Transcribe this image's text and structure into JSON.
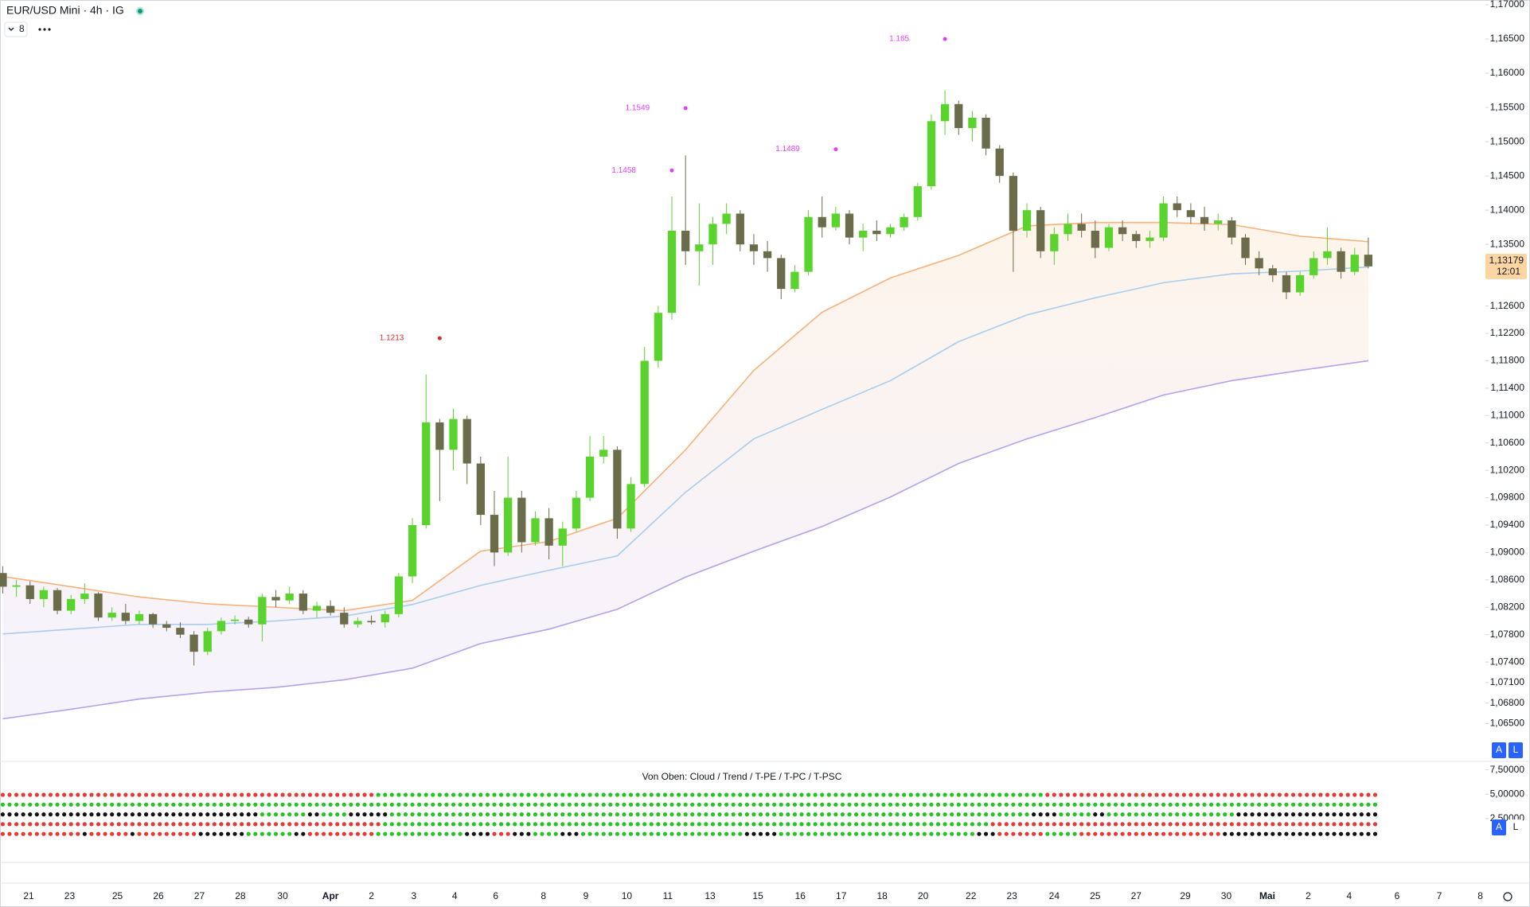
{
  "chart_data": [
    {
      "type": "candlestick",
      "title": "EUR/USD Mini · 4h · IG",
      "badge": "8",
      "up_color": "#5bd32e",
      "down_color": "#6b6c4a",
      "open": [
        1.087,
        1.085,
        1.0852,
        1.0832,
        1.0845,
        1.0815,
        1.0832,
        1.084,
        1.0805,
        1.0812,
        1.08,
        1.081,
        1.0795,
        1.079,
        1.078,
        1.0755,
        1.0785,
        1.08,
        1.0802,
        1.0795,
        1.0835,
        1.083,
        1.084,
        1.0815,
        1.0822,
        1.0812,
        1.0795,
        1.08,
        1.0798,
        1.081,
        1.0865,
        1.094,
        1.109,
        1.105,
        1.1095,
        1.103,
        1.0955,
        1.09,
        1.098,
        1.0915,
        1.095,
        1.091,
        1.0935,
        1.098,
        1.104,
        1.105,
        1.0935,
        1.1,
        1.118,
        1.125,
        1.137,
        1.134,
        1.135,
        1.138,
        1.1395,
        1.135,
        1.134,
        1.133,
        1.1285,
        1.131,
        1.139,
        1.1375,
        1.1395,
        1.136,
        1.137,
        1.1365,
        1.1375,
        1.139,
        1.1435,
        1.153,
        1.1555,
        1.152,
        1.1535,
        1.149,
        1.145,
        1.137,
        1.14,
        1.134,
        1.1365,
        1.138,
        1.137,
        1.1345,
        1.1375,
        1.1365,
        1.1355,
        1.136,
        1.141,
        1.14,
        1.139,
        1.138,
        1.1385,
        1.136,
        1.133,
        1.1315,
        1.1305,
        1.128,
        1.1305,
        1.133,
        1.134,
        1.131,
        1.1335
      ],
      "high": [
        1.088,
        1.086,
        1.0858,
        1.085,
        1.0848,
        1.0838,
        1.0855,
        1.0842,
        1.082,
        1.0825,
        1.0815,
        1.0812,
        1.08,
        1.0798,
        1.0785,
        1.079,
        1.0805,
        1.0808,
        1.0806,
        1.084,
        1.0845,
        1.085,
        1.0845,
        1.0828,
        1.083,
        1.082,
        1.0805,
        1.0808,
        1.0815,
        1.087,
        1.095,
        1.116,
        1.1095,
        1.111,
        1.11,
        1.104,
        1.099,
        1.104,
        1.099,
        1.096,
        1.0965,
        1.0945,
        1.099,
        1.107,
        1.107,
        1.1055,
        1.101,
        1.12,
        1.126,
        1.142,
        1.148,
        1.141,
        1.139,
        1.141,
        1.14,
        1.1365,
        1.1355,
        1.1335,
        1.132,
        1.14,
        1.142,
        1.1405,
        1.14,
        1.138,
        1.1385,
        1.138,
        1.1395,
        1.144,
        1.154,
        1.1575,
        1.156,
        1.1545,
        1.154,
        1.1495,
        1.1455,
        1.141,
        1.1405,
        1.1375,
        1.1395,
        1.1395,
        1.1385,
        1.138,
        1.1385,
        1.137,
        1.137,
        1.142,
        1.142,
        1.141,
        1.1405,
        1.1395,
        1.139,
        1.1365,
        1.134,
        1.132,
        1.131,
        1.131,
        1.134,
        1.1375,
        1.1345,
        1.1345,
        1.136
      ],
      "low": [
        1.084,
        1.0835,
        1.0825,
        1.082,
        1.081,
        1.081,
        1.0825,
        1.08,
        1.08,
        1.0795,
        1.0795,
        1.079,
        1.0785,
        1.0775,
        1.0735,
        1.075,
        1.078,
        1.0795,
        1.079,
        1.077,
        1.082,
        1.0825,
        1.081,
        1.0805,
        1.0808,
        1.079,
        1.079,
        1.0795,
        1.079,
        1.0805,
        1.0855,
        1.0935,
        1.0975,
        1.102,
        1.1,
        1.094,
        1.088,
        1.0895,
        1.09,
        1.091,
        1.089,
        1.088,
        1.093,
        1.0975,
        1.103,
        1.092,
        1.093,
        1.0995,
        1.117,
        1.124,
        1.132,
        1.129,
        1.132,
        1.1365,
        1.134,
        1.132,
        1.131,
        1.127,
        1.128,
        1.1305,
        1.136,
        1.137,
        1.135,
        1.134,
        1.1355,
        1.136,
        1.137,
        1.1385,
        1.143,
        1.151,
        1.151,
        1.15,
        1.148,
        1.144,
        1.131,
        1.136,
        1.133,
        1.132,
        1.1355,
        1.136,
        1.133,
        1.134,
        1.1355,
        1.1345,
        1.1345,
        1.1355,
        1.139,
        1.138,
        1.137,
        1.137,
        1.135,
        1.132,
        1.1305,
        1.1295,
        1.127,
        1.1275,
        1.13,
        1.132,
        1.13,
        1.1305,
        1.1315
      ],
      "close": [
        1.085,
        1.0852,
        1.0832,
        1.0845,
        1.0815,
        1.0832,
        1.084,
        1.0805,
        1.0812,
        1.08,
        1.081,
        1.0795,
        1.079,
        1.078,
        1.0755,
        1.0785,
        1.08,
        1.0802,
        1.0795,
        1.0835,
        1.083,
        1.084,
        1.0815,
        1.0822,
        1.0812,
        1.0795,
        1.08,
        1.0798,
        1.081,
        1.0865,
        1.094,
        1.109,
        1.105,
        1.1095,
        1.103,
        1.0955,
        1.09,
        1.098,
        1.0915,
        1.095,
        1.091,
        1.0935,
        1.098,
        1.104,
        1.105,
        1.0935,
        1.1,
        1.118,
        1.125,
        1.137,
        1.134,
        1.135,
        1.138,
        1.1395,
        1.135,
        1.134,
        1.133,
        1.1285,
        1.131,
        1.139,
        1.1375,
        1.1395,
        1.136,
        1.137,
        1.1365,
        1.1375,
        1.139,
        1.1435,
        1.153,
        1.1555,
        1.152,
        1.1535,
        1.149,
        1.145,
        1.137,
        1.14,
        1.134,
        1.1365,
        1.138,
        1.137,
        1.1345,
        1.1375,
        1.1365,
        1.1355,
        1.136,
        1.141,
        1.14,
        1.139,
        1.138,
        1.1385,
        1.136,
        1.133,
        1.1315,
        1.1305,
        1.128,
        1.1305,
        1.133,
        1.134,
        1.131,
        1.1335,
        1.13179
      ],
      "series": [
        {
          "color": "#f7b27a",
          "x": [
            0,
            5,
            10,
            15,
            20,
            25,
            30,
            35,
            40,
            45,
            50,
            55,
            60,
            65,
            70,
            75,
            80,
            85,
            90,
            95,
            100
          ],
          "values": [
            1.0865,
            1.085,
            1.0835,
            1.0825,
            1.082,
            1.0815,
            1.083,
            1.0902,
            1.0916,
            1.095,
            1.105,
            1.1166,
            1.1251,
            1.1301,
            1.1334,
            1.1377,
            1.1382,
            1.1382,
            1.1379,
            1.1362,
            1.1354
          ]
        },
        {
          "color": "#a9cdee",
          "x": [
            0,
            5,
            10,
            15,
            20,
            25,
            30,
            35,
            40,
            45,
            50,
            55,
            60,
            65,
            70,
            75,
            80,
            85,
            90,
            95,
            100
          ],
          "values": [
            1.0781,
            1.0788,
            1.0795,
            1.0795,
            1.08,
            1.0807,
            1.0824,
            1.0852,
            1.0874,
            1.0895,
            1.0988,
            1.1066,
            1.1109,
            1.1151,
            1.1208,
            1.1247,
            1.1272,
            1.1294,
            1.1307,
            1.1311,
            1.1317
          ]
        },
        {
          "color": "#b3a2ec",
          "x": [
            0,
            5,
            10,
            15,
            20,
            25,
            30,
            35,
            40,
            45,
            50,
            55,
            60,
            65,
            70,
            75,
            80,
            85,
            90,
            95,
            100
          ],
          "values": [
            1.0657,
            1.0671,
            1.0686,
            1.0696,
            1.0703,
            1.0714,
            1.0731,
            1.0767,
            1.0788,
            1.0817,
            1.0864,
            1.0902,
            1.0938,
            1.0981,
            1.103,
            1.1066,
            1.1097,
            1.113,
            1.1151,
            1.1166,
            1.118
          ]
        }
      ],
      "annotations": [
        {
          "label": "1.165",
          "value": 1.165,
          "x": 69,
          "color": "#e040fb"
        },
        {
          "label": "1.1549",
          "value": 1.1549,
          "x": 50,
          "color": "#e040fb"
        },
        {
          "label": "1.1458",
          "value": 1.1458,
          "x": 49,
          "color": "#e040fb"
        },
        {
          "label": "1.1489",
          "value": 1.1489,
          "x": 61,
          "color": "#e040fb"
        },
        {
          "label": "1.1213",
          "value": 1.1213,
          "x": 32,
          "color": "#d32f2f"
        }
      ],
      "last_price": {
        "value": 1.13179,
        "label": "1,13179",
        "countdown": "12:01"
      },
      "buttons": [
        "A",
        "L"
      ],
      "ylim": [
        1.0596,
        1.1707
      ],
      "yticks": [
        {
          "value": 1.17,
          "label": "1,17000"
        },
        {
          "value": 1.165,
          "label": "1,16500"
        },
        {
          "value": 1.16,
          "label": "1,16000"
        },
        {
          "value": 1.155,
          "label": "1,15500"
        },
        {
          "value": 1.15,
          "label": "1,15000"
        },
        {
          "value": 1.145,
          "label": "1,14500"
        },
        {
          "value": 1.14,
          "label": "1,14000"
        },
        {
          "value": 1.135,
          "label": "1,13500"
        },
        {
          "value": 1.126,
          "label": "1,12600"
        },
        {
          "value": 1.122,
          "label": "1,12200"
        },
        {
          "value": 1.118,
          "label": "1,11800"
        },
        {
          "value": 1.114,
          "label": "1,11400"
        },
        {
          "value": 1.11,
          "label": "1,11000"
        },
        {
          "value": 1.106,
          "label": "1,10600"
        },
        {
          "value": 1.102,
          "label": "1,10200"
        },
        {
          "value": 1.098,
          "label": "1,09800"
        },
        {
          "value": 1.094,
          "label": "1,09400"
        },
        {
          "value": 1.09,
          "label": "1,09000"
        },
        {
          "value": 1.086,
          "label": "1,08600"
        },
        {
          "value": 1.082,
          "label": "1,08200"
        },
        {
          "value": 1.078,
          "label": "1,07800"
        },
        {
          "value": 1.074,
          "label": "1,07400"
        },
        {
          "value": 1.071,
          "label": "1,07100"
        },
        {
          "value": 1.068,
          "label": "1,06800"
        },
        {
          "value": 1.065,
          "label": "1,06500"
        }
      ],
      "xlim": [
        -0.2,
        108.4
      ],
      "xticks": [
        {
          "value": 1.9,
          "label": "21"
        },
        {
          "value": 4.9,
          "label": "23"
        },
        {
          "value": 8.4,
          "label": "25"
        },
        {
          "value": 11.4,
          "label": "26"
        },
        {
          "value": 14.4,
          "label": "27"
        },
        {
          "value": 17.4,
          "label": "28"
        },
        {
          "value": 20.5,
          "label": "30"
        },
        {
          "value": 24,
          "label": "Apr"
        },
        {
          "value": 27,
          "label": "2"
        },
        {
          "value": 30.1,
          "label": "3"
        },
        {
          "value": 33.1,
          "label": "4"
        },
        {
          "value": 36.1,
          "label": "6"
        },
        {
          "value": 39.6,
          "label": "8"
        },
        {
          "value": 42.7,
          "label": "9"
        },
        {
          "value": 45.7,
          "label": "10"
        },
        {
          "value": 48.7,
          "label": "11"
        },
        {
          "value": 51.8,
          "label": "13"
        },
        {
          "value": 55.3,
          "label": "15"
        },
        {
          "value": 58.4,
          "label": "16"
        },
        {
          "value": 61.4,
          "label": "17"
        },
        {
          "value": 64.4,
          "label": "18"
        },
        {
          "value": 67.4,
          "label": "20"
        },
        {
          "value": 70.9,
          "label": "22"
        },
        {
          "value": 73.9,
          "label": "23"
        },
        {
          "value": 77,
          "label": "24"
        },
        {
          "value": 80,
          "label": "25"
        },
        {
          "value": 83,
          "label": "27"
        },
        {
          "value": 86.6,
          "label": "29"
        },
        {
          "value": 89.6,
          "label": "30"
        },
        {
          "value": 92.6,
          "label": "Mai"
        },
        {
          "value": 95.6,
          "label": "2"
        },
        {
          "value": 98.6,
          "label": "4"
        },
        {
          "value": 102.1,
          "label": "6"
        },
        {
          "value": 105.2,
          "label": "7"
        },
        {
          "value": 108.2,
          "label": "8"
        }
      ],
      "grid": false
    },
    {
      "type": "dot-matrix",
      "title": "Von Oben: Cloud / Trend / T-PE / T-PC / T-PSC",
      "ylim": [
        -2.0,
        8.2
      ],
      "yticks": [
        {
          "value": 7.5,
          "label": "7,50000"
        },
        {
          "value": 5.0,
          "label": "5,00000"
        },
        {
          "value": 2.5,
          "label": "2,50000"
        }
      ],
      "buttons": [
        "A",
        "L"
      ],
      "rows": [
        {
          "segments": [
            {
              "color": "#e53935",
              "count": 55
            },
            {
              "color": "#22c322",
              "count": 98
            },
            {
              "color": "#e53935",
              "count": 49
            }
          ]
        },
        {
          "segments": [
            {
              "color": "#22c322",
              "count": 202
            }
          ]
        },
        {
          "segments": [
            {
              "color": "#111111",
              "count": 38
            },
            {
              "color": "#22c322",
              "count": 7
            },
            {
              "color": "#111111",
              "count": 2
            },
            {
              "color": "#22c322",
              "count": 4
            },
            {
              "color": "#111111",
              "count": 6
            },
            {
              "color": "#22c322",
              "count": 94
            },
            {
              "color": "#111111",
              "count": 4
            },
            {
              "color": "#22c322",
              "count": 5
            },
            {
              "color": "#111111",
              "count": 2
            },
            {
              "color": "#22c322",
              "count": 19
            },
            {
              "color": "#111111",
              "count": 21
            }
          ]
        },
        {
          "segments": [
            {
              "color": "#e53935",
              "count": 56
            },
            {
              "color": "#22c322",
              "count": 89
            },
            {
              "color": "#e53935",
              "count": 57
            }
          ]
        },
        {
          "segments": [
            {
              "color": "#e53935",
              "count": 12
            },
            {
              "color": "#111111",
              "count": 1
            },
            {
              "color": "#e53935",
              "count": 6
            },
            {
              "color": "#111111",
              "count": 1
            },
            {
              "color": "#e53935",
              "count": 9
            },
            {
              "color": "#111111",
              "count": 7
            },
            {
              "color": "#22c322",
              "count": 7
            },
            {
              "color": "#111111",
              "count": 2
            },
            {
              "color": "#e53935",
              "count": 10
            },
            {
              "color": "#22c322",
              "count": 13
            },
            {
              "color": "#111111",
              "count": 4
            },
            {
              "color": "#e53935",
              "count": 3
            },
            {
              "color": "#111111",
              "count": 3
            },
            {
              "color": "#22c322",
              "count": 4
            },
            {
              "color": "#111111",
              "count": 3
            },
            {
              "color": "#22c322",
              "count": 24
            },
            {
              "color": "#111111",
              "count": 5
            },
            {
              "color": "#22c322",
              "count": 29
            },
            {
              "color": "#111111",
              "count": 3
            },
            {
              "color": "#e53935",
              "count": 7
            },
            {
              "color": "#22c322",
              "count": 5
            },
            {
              "color": "#e53935",
              "count": 21
            },
            {
              "color": "#111111",
              "count": 23
            }
          ]
        }
      ]
    }
  ]
}
